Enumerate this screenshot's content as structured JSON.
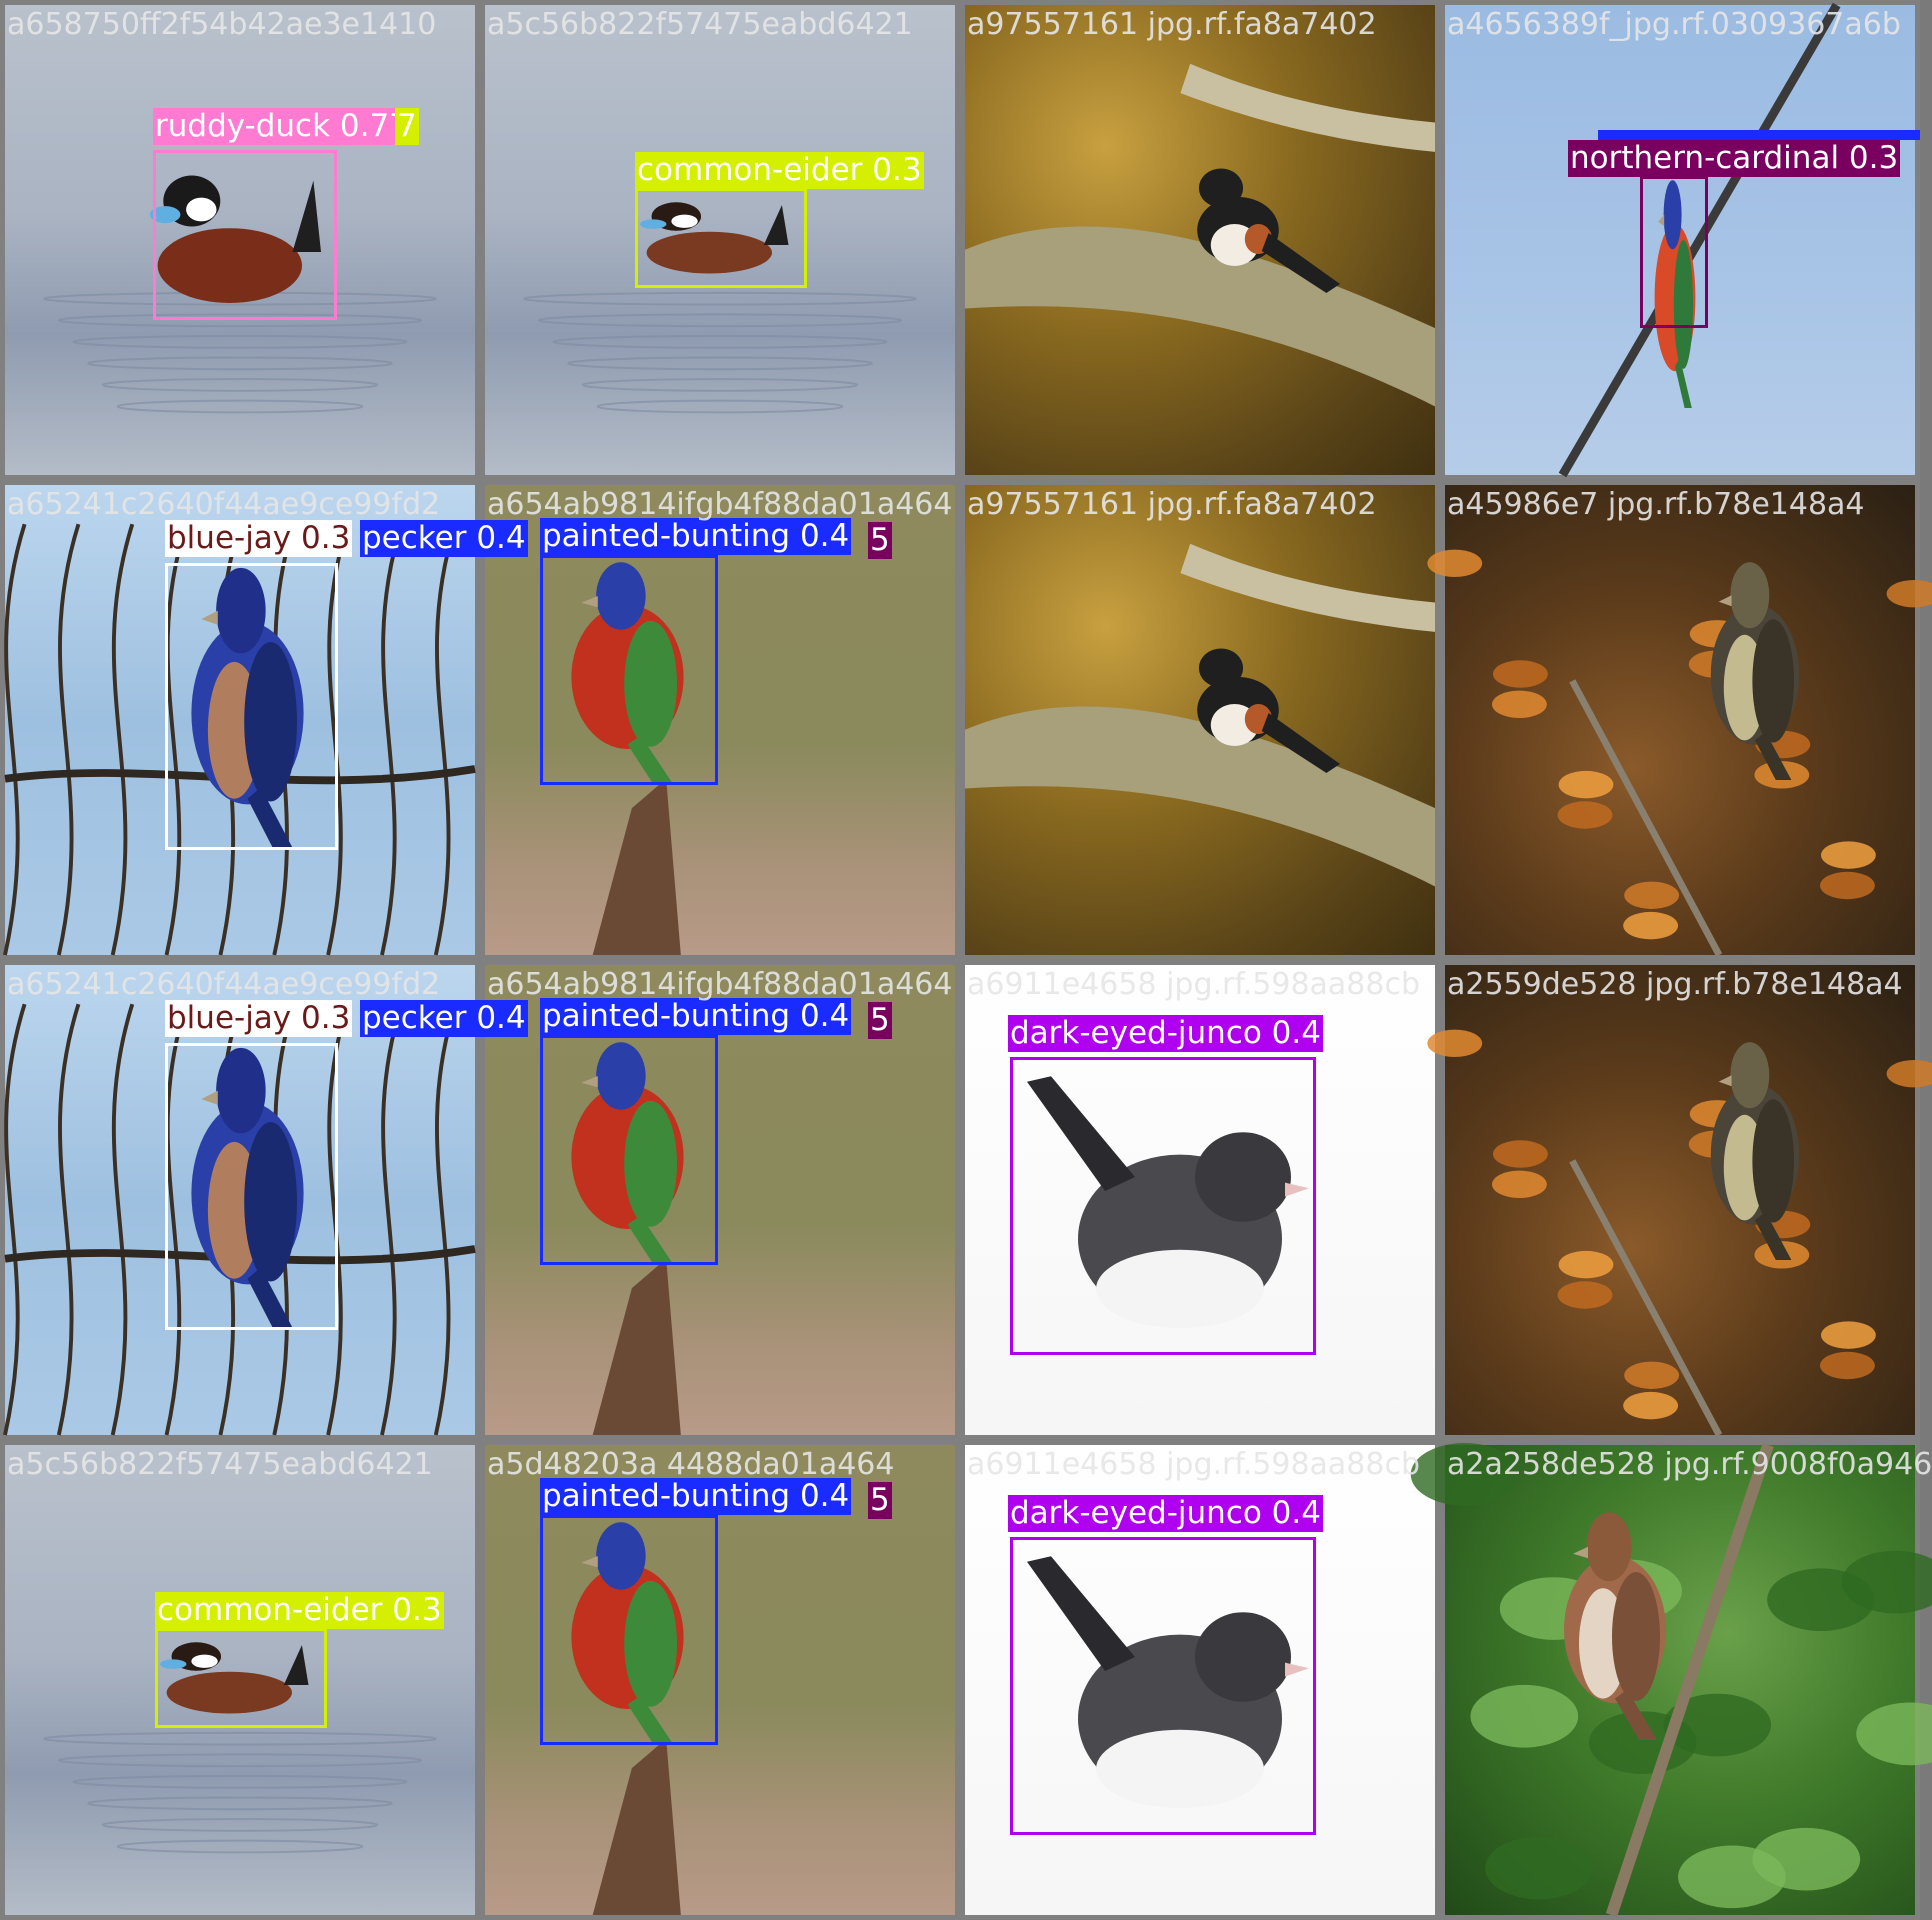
{
  "tiles": [
    {
      "filename": "a658750ff2f54b42ae3e1410",
      "scene": "water",
      "detections": [
        {
          "label": "ruddy-duck 0.77",
          "color": "#ff7ad1"
        }
      ],
      "extra_labels": [
        {
          "text": "7",
          "color": "#d4f000"
        }
      ]
    },
    {
      "filename": "a5c56b822f57475eabd6421",
      "scene": "water",
      "detections": [
        {
          "label": "common-eider 0.3",
          "color": "#d4f000"
        }
      ]
    },
    {
      "filename": "a97557161 jpg.rf.fa8a7402",
      "scene": "branch",
      "detections": []
    },
    {
      "filename": "a4656389f_jpg.rf.0309367a6b",
      "scene": "sky",
      "detections": [
        {
          "label": "northern-cardinal 0.3",
          "color": "#7a0060"
        }
      ],
      "bars": [
        {
          "color": "#1a2bff"
        }
      ]
    },
    {
      "filename": "a65241c2640f44ae9ce99fd2",
      "scene": "twigs",
      "detections": [
        {
          "label": "blue-jay 0.3",
          "color": "#ffffff",
          "text_color": "#6b1a1a"
        }
      ],
      "extra_labels": [
        {
          "text": "pecker 0.4",
          "color": "#1a2bff"
        }
      ]
    },
    {
      "filename": "a654ab9814ifgb4f88da01a464",
      "scene": "olive",
      "detections": [
        {
          "label": "painted-bunting 0.4",
          "color": "#1a2bff"
        }
      ],
      "extra_labels": [
        {
          "text": "5",
          "color": "#7a0060"
        }
      ]
    },
    {
      "filename": "a97557161 jpg.rf.fa8a7402",
      "scene": "branch",
      "detections": []
    },
    {
      "filename": "a45986e7 jpg.rf.b78e148a4",
      "scene": "autumn",
      "detections": []
    },
    {
      "filename": "a65241c2640f44ae9ce99fd2",
      "scene": "twigs",
      "detections": [
        {
          "label": "blue-jay 0.3",
          "color": "#ffffff",
          "text_color": "#6b1a1a"
        }
      ],
      "extra_labels": [
        {
          "text": "pecker 0.4",
          "color": "#1a2bff"
        }
      ]
    },
    {
      "filename": "a654ab9814ifgb4f88da01a464",
      "scene": "olive",
      "detections": [
        {
          "label": "painted-bunting 0.4",
          "color": "#1a2bff"
        }
      ],
      "extra_labels": [
        {
          "text": "5",
          "color": "#7a0060"
        }
      ]
    },
    {
      "filename": "a6911e4658 jpg.rf.598aa88cb",
      "scene": "snow",
      "detections": [
        {
          "label": "dark-eyed-junco 0.4",
          "color": "#b000f0"
        }
      ]
    },
    {
      "filename": "a2559de528 jpg.rf.b78e148a4",
      "scene": "autumn",
      "detections": []
    },
    {
      "filename": "a5c56b822f57475eabd6421",
      "scene": "water",
      "detections": [
        {
          "label": "common-eider 0.3",
          "color": "#d4f000"
        }
      ]
    },
    {
      "filename": "a5d48203a 4488da01a464",
      "scene": "olive",
      "detections": [
        {
          "label": "painted-bunting 0.4",
          "color": "#1a2bff"
        }
      ],
      "extra_labels": [
        {
          "text": "5",
          "color": "#7a0060"
        }
      ]
    },
    {
      "filename": "a6911e4658 jpg.rf.598aa88cb",
      "scene": "snow",
      "detections": [
        {
          "label": "dark-eyed-junco 0.4",
          "color": "#b000f0"
        }
      ]
    },
    {
      "filename": "a2a258de528 jpg.rf.9008f0a946",
      "scene": "leaves",
      "detections": []
    }
  ]
}
